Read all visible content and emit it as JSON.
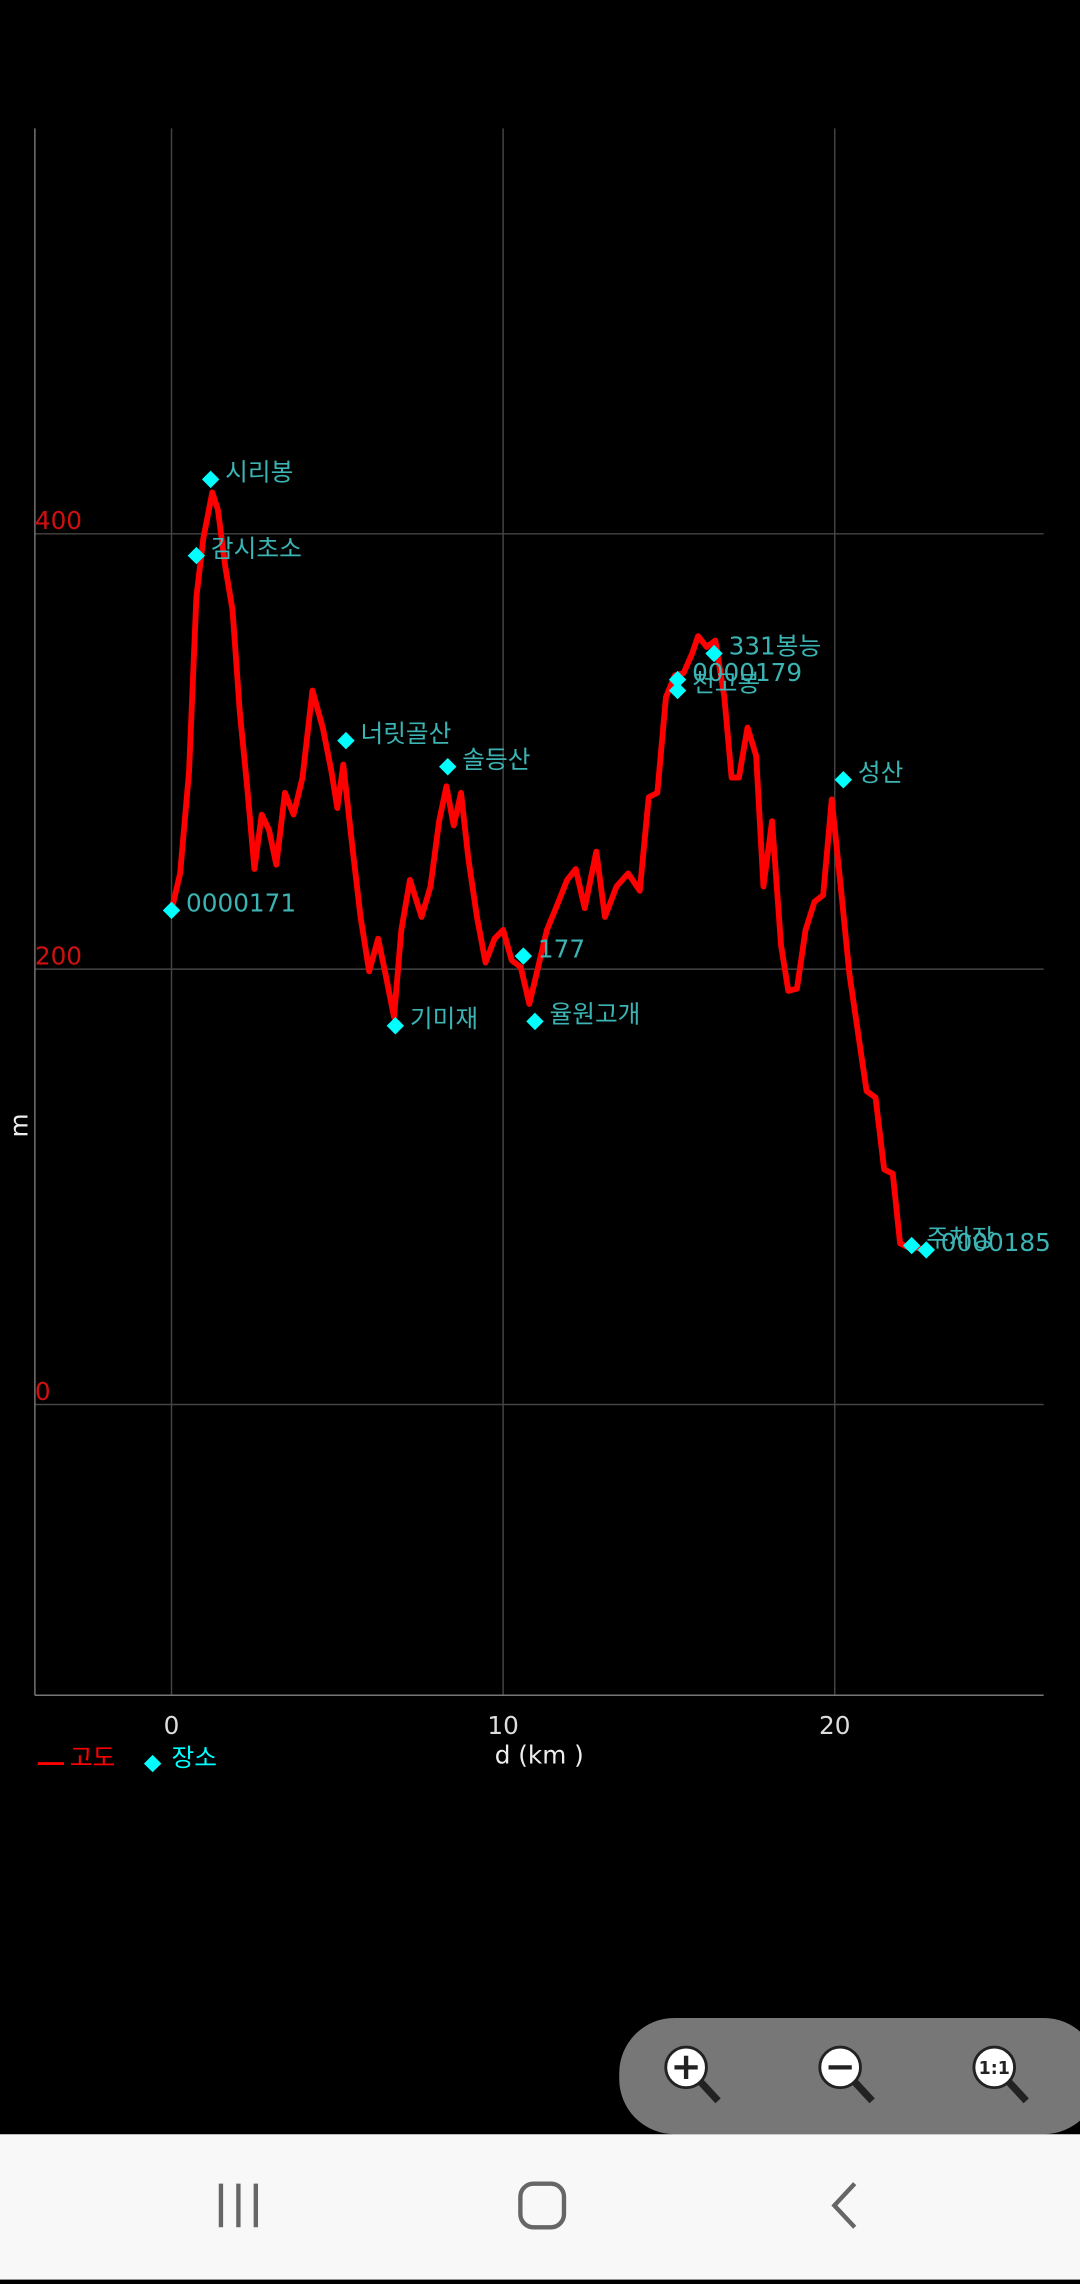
{
  "chart_data": {
    "type": "line",
    "x_label": "d (km )",
    "y_label": "m",
    "xlim": [
      -4.12,
      26.3
    ],
    "ylim": [
      -133.6,
      586.3
    ],
    "xticks": [
      0,
      10,
      20
    ],
    "yticks": [
      0,
      200,
      400
    ],
    "grid": true,
    "series": [
      {
        "name": "고도",
        "type": "line",
        "color": "#ff0000",
        "x": [
          0,
          0.26,
          0.53,
          0.75,
          0.96,
          1.23,
          1.4,
          1.62,
          1.84,
          2.06,
          2.28,
          2.5,
          2.72,
          2.94,
          3.16,
          3.42,
          3.68,
          3.95,
          4.25,
          4.56,
          4.82,
          5.0,
          5.18,
          5.44,
          5.7,
          5.96,
          6.23,
          6.45,
          6.71,
          6.93,
          7.19,
          7.54,
          7.81,
          8.07,
          8.29,
          8.51,
          8.73,
          8.95,
          9.21,
          9.47,
          9.74,
          10.0,
          10.26,
          10.53,
          10.79,
          11.01,
          11.32,
          11.67,
          11.93,
          12.19,
          12.46,
          12.81,
          13.07,
          13.42,
          13.77,
          14.12,
          14.39,
          14.65,
          14.91,
          15.18,
          15.44,
          15.7,
          15.88,
          16.14,
          16.4,
          16.67,
          16.89,
          17.11,
          17.37,
          17.63,
          17.85,
          18.11,
          18.38,
          18.6,
          18.86,
          19.12,
          19.39,
          19.65,
          19.91,
          20.18,
          20.44,
          20.7,
          20.96,
          21.23,
          21.49,
          21.75,
          21.97,
          22.24,
          22.46,
          22.72
        ],
        "values": [
          227,
          244,
          291,
          371,
          398,
          419,
          411,
          385,
          365,
          318,
          284,
          246,
          271,
          264,
          248,
          281,
          271,
          288,
          328,
          311,
          291,
          274,
          294,
          258,
          224,
          199,
          214,
          198,
          178,
          218,
          241,
          224,
          238,
          268,
          284,
          266,
          281,
          251,
          224,
          203,
          214,
          218,
          204,
          201,
          184,
          198,
          218,
          231,
          241,
          246,
          228,
          254,
          224,
          238,
          244,
          236,
          279,
          281,
          325,
          335,
          336,
          345,
          353,
          348,
          351,
          325,
          288,
          288,
          311,
          298,
          238,
          268,
          211,
          190,
          191,
          218,
          231,
          234,
          278,
          238,
          198,
          171,
          144,
          141,
          108,
          106,
          74,
          72,
          72,
          71
        ]
      },
      {
        "name": "장소",
        "type": "scatter",
        "color": "#00ffff",
        "label_color": "#3cb4b4",
        "x": [
          0,
          0.75,
          1.18,
          5.26,
          6.75,
          8.33,
          10.61,
          10.96,
          15.26,
          15.26,
          16.36,
          20.26,
          22.32,
          22.76
        ],
        "values": [
          227,
          390,
          425,
          305,
          174,
          293,
          206,
          176,
          333,
          328,
          345,
          287,
          73,
          71
        ],
        "labels": [
          "0000171",
          "감시초소",
          "시리봉",
          "너릿골산",
          "기미재",
          "솔등산",
          "177",
          "율원고개",
          "0000179",
          "천고봉",
          "331봉능",
          "성산",
          "주차장",
          "0000185"
        ]
      }
    ]
  },
  "ui": {
    "zoom_reset_label": "1:1"
  }
}
